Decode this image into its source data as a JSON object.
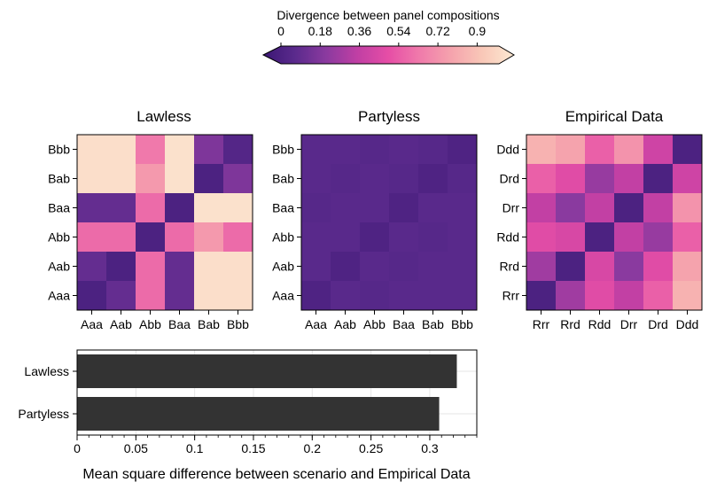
{
  "colorbar": {
    "title": "Divergence between panel compositions",
    "ticks": [
      "0",
      "0.18",
      "0.36",
      "0.54",
      "0.72",
      "0.9"
    ],
    "tick_values": [
      0,
      0.18,
      0.36,
      0.54,
      0.72,
      0.9
    ],
    "range": [
      0,
      1
    ],
    "extend": "both",
    "colormap": "magma-like",
    "stops": [
      "#3b1774",
      "#5a2a8c",
      "#8a3a9f",
      "#c03fa4",
      "#e64ea6",
      "#f07bab",
      "#f5a3ad",
      "#f9c8b8",
      "#fce9d2"
    ]
  },
  "chart_data": [
    {
      "type": "heatmap",
      "title": "Lawless",
      "x": [
        "Aaa",
        "Aab",
        "Abb",
        "Baa",
        "Bab",
        "Bbb"
      ],
      "y": [
        "Bbb",
        "Bab",
        "Baa",
        "Abb",
        "Aab",
        "Aaa"
      ],
      "values": [
        [
          0.96,
          0.96,
          0.62,
          0.97,
          0.22,
          0.1
        ],
        [
          0.96,
          0.96,
          0.72,
          0.97,
          0.07,
          0.22
        ],
        [
          0.15,
          0.15,
          0.58,
          0.07,
          0.97,
          0.97
        ],
        [
          0.58,
          0.58,
          0.07,
          0.58,
          0.72,
          0.58
        ],
        [
          0.15,
          0.07,
          0.58,
          0.15,
          0.96,
          0.96
        ],
        [
          0.07,
          0.15,
          0.58,
          0.15,
          0.96,
          0.96
        ]
      ]
    },
    {
      "type": "heatmap",
      "title": "Partyless",
      "x": [
        "Aaa",
        "Aab",
        "Abb",
        "Baa",
        "Bab",
        "Bbb"
      ],
      "y": [
        "Bbb",
        "Bab",
        "Baa",
        "Abb",
        "Aab",
        "Aaa"
      ],
      "values": [
        [
          0.12,
          0.12,
          0.11,
          0.12,
          0.11,
          0.08
        ],
        [
          0.12,
          0.11,
          0.12,
          0.11,
          0.08,
          0.11
        ],
        [
          0.11,
          0.12,
          0.12,
          0.08,
          0.12,
          0.12
        ],
        [
          0.12,
          0.12,
          0.08,
          0.12,
          0.11,
          0.12
        ],
        [
          0.12,
          0.08,
          0.12,
          0.11,
          0.12,
          0.12
        ],
        [
          0.08,
          0.12,
          0.11,
          0.12,
          0.12,
          0.12
        ]
      ]
    },
    {
      "type": "heatmap",
      "title": "Empirical Data",
      "x": [
        "Rrr",
        "Rrd",
        "Rdd",
        "Drr",
        "Drd",
        "Ddd"
      ],
      "y": [
        "Ddd",
        "Drd",
        "Drr",
        "Rdd",
        "Rrd",
        "Rrr"
      ],
      "values": [
        [
          0.8,
          0.75,
          0.55,
          0.7,
          0.42,
          0.07
        ],
        [
          0.55,
          0.48,
          0.28,
          0.38,
          0.07,
          0.42
        ],
        [
          0.38,
          0.25,
          0.38,
          0.07,
          0.38,
          0.7
        ],
        [
          0.48,
          0.45,
          0.07,
          0.38,
          0.28,
          0.55
        ],
        [
          0.3,
          0.07,
          0.45,
          0.25,
          0.48,
          0.75
        ],
        [
          0.07,
          0.3,
          0.48,
          0.38,
          0.55,
          0.8
        ]
      ]
    },
    {
      "type": "bar",
      "orientation": "horizontal",
      "categories": [
        "Lawless",
        "Partyless"
      ],
      "values": [
        0.323,
        0.308
      ],
      "color": "#333333",
      "xlabel": "Mean square difference between scenario and Empirical Data",
      "ylabel": "",
      "xlim": [
        0,
        0.34
      ],
      "xticks": [
        "0",
        "0.05",
        "0.1",
        "0.15",
        "0.2",
        "0.25",
        "0.3"
      ],
      "xtick_values": [
        0,
        0.05,
        0.1,
        0.15,
        0.2,
        0.25,
        0.3
      ],
      "grid": true
    }
  ]
}
